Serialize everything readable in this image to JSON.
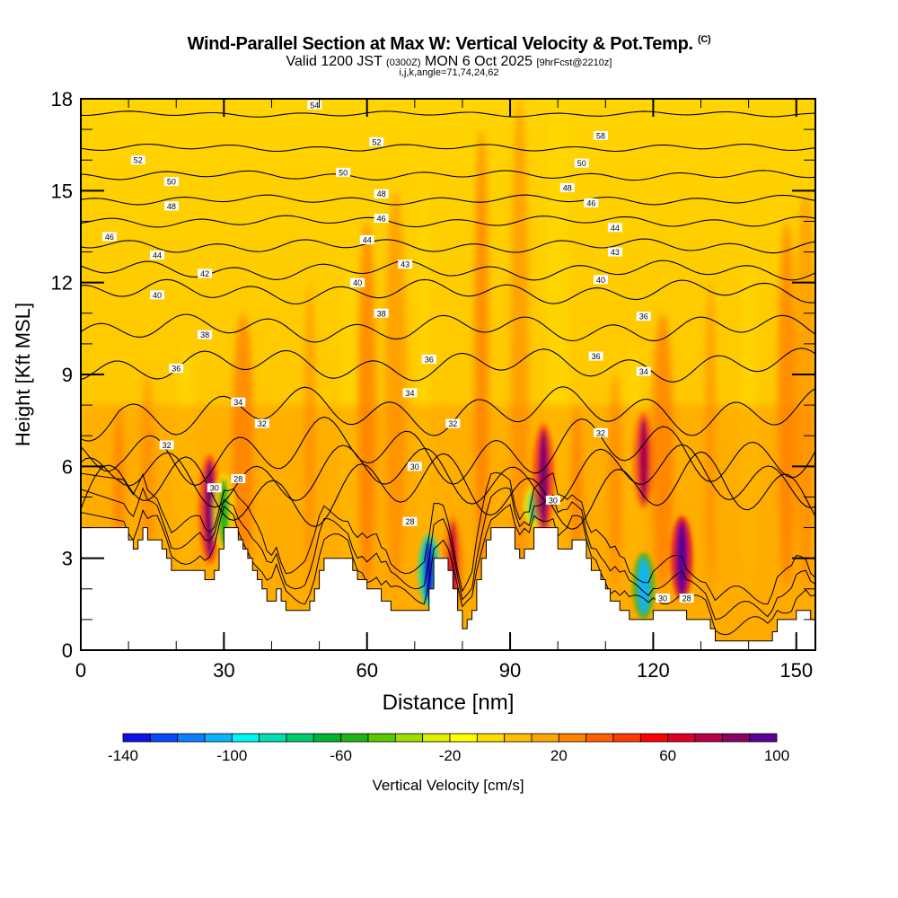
{
  "chart_data": {
    "type": "heatmap",
    "title": "Wind-Parallel Section at Max W: Vertical Velocity & Pot.Temp.",
    "title_mark": "(C)",
    "subtitle_parts": [
      "Valid 1200 JST",
      "(0300Z)",
      "MON 6 Oct 2025",
      "[9hrFcst@2210z]"
    ],
    "subtitle2": "i,j,k,angle=71,74,24,62",
    "xlabel": "Distance [nm]",
    "ylabel": "Height [Kft MSL]",
    "xlim": [
      0,
      154
    ],
    "ylim": [
      0,
      18
    ],
    "xticks": [
      0,
      30,
      60,
      90,
      120,
      150
    ],
    "yticks": [
      0,
      3,
      6,
      9,
      12,
      15,
      18
    ],
    "xtick_labels": [
      "0",
      "30",
      "60",
      "90",
      "120",
      "150"
    ],
    "ytick_labels": [
      "0",
      "3",
      "6",
      "9",
      "12",
      "15",
      "18"
    ],
    "colorbar": {
      "label": "Vertical Velocity [cm/s]",
      "min": -140,
      "max": 100,
      "step": 10,
      "tick_labels": [
        "-140",
        "-100",
        "-60",
        "-20",
        "20",
        "60",
        "100"
      ],
      "colors": [
        "#0a12e8",
        "#0a4af5",
        "#0a7ffa",
        "#0ab4fa",
        "#00f5f5",
        "#00e0b4",
        "#00cc6e",
        "#00b432",
        "#1eb414",
        "#5ac800",
        "#a0dc00",
        "#dcf000",
        "#ffff00",
        "#ffdc00",
        "#ffbe00",
        "#ffa500",
        "#ff8200",
        "#ff5f00",
        "#ff3c00",
        "#ff0000",
        "#dc0028",
        "#b40046",
        "#8c0064",
        "#5a0096"
      ]
    },
    "vertical_velocity_features": [
      {
        "x": 27,
        "z_bottom": 3.0,
        "z_top": 6.2,
        "w": 80
      },
      {
        "x": 30,
        "z_bottom": 3.4,
        "z_top": 5.6,
        "w": -60
      },
      {
        "x": 73,
        "z_bottom": 1.6,
        "z_top": 3.6,
        "w": -140
      },
      {
        "x": 78,
        "z_bottom": 1.2,
        "z_top": 4.2,
        "w": 60
      },
      {
        "x": 95,
        "z_bottom": 4.2,
        "z_top": 5.2,
        "w": -80
      },
      {
        "x": 97,
        "z_bottom": 4.0,
        "z_top": 7.2,
        "w": 80
      },
      {
        "x": 118,
        "z_bottom": 1.2,
        "z_top": 3.0,
        "w": -110
      },
      {
        "x": 118,
        "z_bottom": 4.8,
        "z_top": 7.6,
        "w": 70
      },
      {
        "x": 126,
        "z_bottom": 1.8,
        "z_top": 4.2,
        "w": 100
      }
    ],
    "background_w": 10,
    "terrain_kft": {
      "x": [
        0,
        9,
        10,
        11,
        12,
        13,
        14,
        15,
        16,
        17,
        18,
        19,
        20,
        21,
        22,
        23,
        24,
        25,
        26,
        27,
        28,
        29,
        30,
        31,
        32,
        33,
        34,
        35,
        36,
        37,
        38,
        39,
        40,
        41,
        42,
        43,
        44,
        45,
        46,
        47,
        48,
        49,
        50,
        51,
        52,
        53,
        54,
        55,
        56,
        57,
        58,
        59,
        60,
        61,
        62,
        63,
        64,
        65,
        66,
        67,
        68,
        69,
        70,
        71,
        72,
        73,
        74,
        75,
        76,
        77,
        78,
        79,
        80,
        81,
        82,
        83,
        84,
        85,
        86,
        87,
        88,
        89,
        90,
        91,
        92,
        93,
        94,
        95,
        96,
        97,
        98,
        99,
        100,
        101,
        102,
        103,
        104,
        105,
        106,
        107,
        108,
        109,
        110,
        111,
        112,
        113,
        114,
        115,
        116,
        117,
        118,
        119,
        120,
        121,
        122,
        123,
        124,
        125,
        126,
        127,
        128,
        129,
        130,
        131,
        132,
        133,
        134,
        135,
        136,
        137,
        138,
        139,
        140,
        141,
        142,
        143,
        144,
        145,
        146,
        147,
        148,
        149,
        150,
        151,
        152,
        153,
        154
      ],
      "h": [
        4.0,
        4.0,
        3.6,
        3.3,
        3.6,
        4.0,
        3.6,
        3.6,
        3.6,
        3.3,
        3.0,
        2.6,
        2.6,
        2.6,
        2.6,
        2.6,
        2.6,
        2.6,
        2.3,
        2.3,
        2.6,
        3.3,
        4.0,
        4.0,
        4.0,
        3.6,
        3.3,
        3.0,
        2.6,
        2.3,
        2.0,
        1.6,
        1.6,
        2.0,
        1.6,
        1.3,
        1.3,
        1.3,
        1.3,
        1.3,
        1.6,
        2.0,
        2.6,
        3.0,
        3.0,
        3.0,
        3.0,
        3.0,
        3.0,
        2.6,
        2.3,
        2.3,
        2.0,
        2.0,
        2.0,
        1.6,
        1.6,
        1.3,
        1.3,
        1.3,
        1.3,
        1.3,
        1.3,
        1.3,
        1.3,
        2.0,
        3.0,
        3.0,
        3.0,
        2.6,
        2.0,
        1.3,
        0.7,
        1.0,
        1.3,
        2.3,
        3.0,
        3.6,
        4.0,
        4.0,
        4.0,
        4.0,
        4.0,
        3.3,
        3.0,
        3.3,
        3.3,
        4.0,
        4.0,
        4.0,
        4.0,
        4.0,
        3.3,
        3.3,
        3.3,
        3.6,
        3.6,
        3.6,
        3.0,
        2.6,
        2.6,
        2.3,
        2.0,
        1.6,
        1.6,
        1.3,
        1.3,
        1.0,
        1.0,
        1.0,
        1.0,
        1.0,
        1.3,
        1.3,
        1.3,
        1.3,
        1.3,
        1.3,
        1.3,
        1.0,
        1.0,
        1.0,
        1.0,
        1.0,
        0.7,
        0.3,
        0.3,
        0.3,
        0.3,
        0.3,
        0.3,
        0.3,
        0.3,
        0.3,
        0.3,
        0.3,
        0.3,
        0.6,
        1.0,
        1.0,
        1.0,
        1.0,
        1.3,
        1.3,
        1.3,
        1.0,
        1.0,
        1.0,
        1.0,
        1.0
      ]
    },
    "theta_contours": [
      {
        "level": 28,
        "z0": 5.2,
        "amp": 0.8
      },
      {
        "level": 30,
        "z0": 5.7,
        "amp": 0.7
      },
      {
        "level": 32,
        "z0": 6.5,
        "amp": 0.7
      },
      {
        "level": 34,
        "z0": 7.8,
        "amp": 0.5
      },
      {
        "level": 36,
        "z0": 9.3,
        "amp": 0.35
      },
      {
        "level": 38,
        "z0": 10.5,
        "amp": 0.3
      },
      {
        "level": 40,
        "z0": 11.7,
        "amp": 0.25
      },
      {
        "level": 42,
        "z0": 12.4,
        "amp": 0.2
      },
      {
        "level": 44,
        "z0": 13.2,
        "amp": 0.15
      },
      {
        "level": 46,
        "z0": 14.0,
        "amp": 0.12
      },
      {
        "level": 48,
        "z0": 14.7,
        "amp": 0.1
      },
      {
        "level": 50,
        "z0": 15.5,
        "amp": 0.1
      },
      {
        "level": 52,
        "z0": 16.4,
        "amp": 0.08
      },
      {
        "level": 54,
        "z0": 17.5,
        "amp": 0.06
      }
    ],
    "contour_labels": [
      {
        "text": "54",
        "x": 49,
        "z": 17.8
      },
      {
        "text": "52",
        "x": 62,
        "z": 16.6
      },
      {
        "text": "52",
        "x": 12,
        "z": 16.0
      },
      {
        "text": "58",
        "x": 109,
        "z": 16.8
      },
      {
        "text": "50",
        "x": 55,
        "z": 15.6
      },
      {
        "text": "50",
        "x": 19,
        "z": 15.3
      },
      {
        "text": "50",
        "x": 105,
        "z": 15.9
      },
      {
        "text": "48",
        "x": 63,
        "z": 14.9
      },
      {
        "text": "48",
        "x": 19,
        "z": 14.5
      },
      {
        "text": "48",
        "x": 102,
        "z": 15.1
      },
      {
        "text": "46",
        "x": 63,
        "z": 14.1
      },
      {
        "text": "46",
        "x": 6,
        "z": 13.5
      },
      {
        "text": "46",
        "x": 107,
        "z": 14.6
      },
      {
        "text": "44",
        "x": 60,
        "z": 13.4
      },
      {
        "text": "44",
        "x": 16,
        "z": 12.9
      },
      {
        "text": "44",
        "x": 112,
        "z": 13.8
      },
      {
        "text": "43",
        "x": 68,
        "z": 12.6
      },
      {
        "text": "43",
        "x": 112,
        "z": 13.0
      },
      {
        "text": "42",
        "x": 26,
        "z": 12.3
      },
      {
        "text": "40",
        "x": 58,
        "z": 12.0
      },
      {
        "text": "40",
        "x": 16,
        "z": 11.6
      },
      {
        "text": "40",
        "x": 109,
        "z": 12.1
      },
      {
        "text": "38",
        "x": 63,
        "z": 11.0
      },
      {
        "text": "38",
        "x": 26,
        "z": 10.3
      },
      {
        "text": "36",
        "x": 118,
        "z": 10.9
      },
      {
        "text": "36",
        "x": 73,
        "z": 9.5
      },
      {
        "text": "36",
        "x": 20,
        "z": 9.2
      },
      {
        "text": "36",
        "x": 108,
        "z": 9.6
      },
      {
        "text": "34",
        "x": 69,
        "z": 8.4
      },
      {
        "text": "34",
        "x": 33,
        "z": 8.1
      },
      {
        "text": "34",
        "x": 118,
        "z": 9.1
      },
      {
        "text": "32",
        "x": 38,
        "z": 7.4
      },
      {
        "text": "32",
        "x": 78,
        "z": 7.4
      },
      {
        "text": "32",
        "x": 18,
        "z": 6.7
      },
      {
        "text": "32",
        "x": 109,
        "z": 7.1
      },
      {
        "text": "30",
        "x": 70,
        "z": 6.0
      },
      {
        "text": "30",
        "x": 99,
        "z": 4.9
      },
      {
        "text": "30",
        "x": 28,
        "z": 5.3
      },
      {
        "text": "30",
        "x": 122,
        "z": 1.7
      },
      {
        "text": "28",
        "x": 33,
        "z": 5.6
      },
      {
        "text": "28",
        "x": 69,
        "z": 4.2
      },
      {
        "text": "28",
        "x": 127,
        "z": 1.7
      }
    ]
  }
}
